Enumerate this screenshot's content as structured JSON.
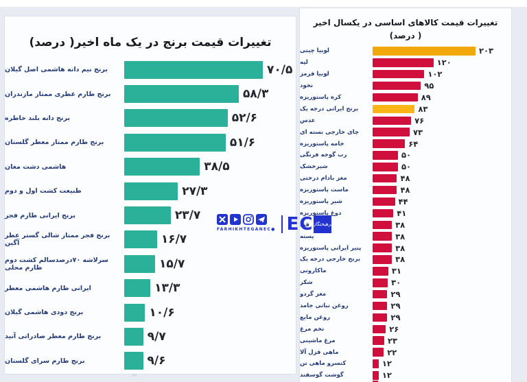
{
  "page": {
    "watermark_text": "farhikhtegan"
  },
  "brand": {
    "social_handle": "FARHIKHTEGANEC●",
    "eco_prefix": "EC",
    "eco_square_label": "فرهیختگان",
    "accent_blue": "#2233cf"
  },
  "chart_data": [
    {
      "type": "bar",
      "orientation": "horizontal",
      "title": "تغییرات قیمت برنج در یک ماه اخیر( درصد)",
      "xlabel": "",
      "ylabel": "",
      "xlim": [
        0,
        75
      ],
      "grid": false,
      "legend": false,
      "bar_color": "#2bb19a",
      "categories": [
        "برنج نیم دانه هاشمی اصل گیلان",
        "برنج طارم عطری ممتاز مازندران",
        "برنج دانه بلند خاطره",
        "برنج طارم ممتاز معطر گلستان",
        "هاشمی دشت مغان",
        "طبیعت کشت اول و دوم",
        "برنج ایرانی طارم فجر",
        "برنج فجر ممتاز شالی گستر عطر آگین",
        "سرلاشه ۷۰درصدسالم کشت دوم طارم محلی",
        "ایرانی طارم هاشمی معطر",
        "برنج دودی هاشمی گیلان",
        "برنج طارم معطر صادراتی آنید",
        "برنج طارم سرای گلستان"
      ],
      "values": [
        70.5,
        58.3,
        52.6,
        51.6,
        38.5,
        27.3,
        23.7,
        16.7,
        15.7,
        13.3,
        10.6,
        9.7,
        9.6
      ],
      "value_display": [
        "۷۰/۵",
        "۵۸/۳",
        "۵۲/۶",
        "۵۱/۶",
        "۳۸/۵",
        "۲۷/۳",
        "۲۳/۷",
        "۱۶/۷",
        "۱۵/۷",
        "۱۳/۳",
        "۱۰/۶",
        "۹/۷",
        "۹/۶"
      ]
    },
    {
      "type": "bar",
      "orientation": "horizontal",
      "title": "تغییرات قیمت کالاهای اساسی در یکسال اخیر",
      "subtitle": "( درصد)",
      "xlabel": "",
      "ylabel": "",
      "xlim": [
        0,
        210
      ],
      "grid": false,
      "legend": false,
      "bar_color": "#d00f3c",
      "highlights": [
        {
          "index": 0,
          "color": "#f2a70a"
        },
        {
          "index": 5,
          "color": "#fdb515"
        }
      ],
      "categories": [
        "لوبیا چیتی",
        "لپه",
        "لوبیا قرمز",
        "نخود",
        "کره پاستوریزه",
        "برنج ایرانی درجه یک",
        "عدس",
        "چای خارجی بسته ای",
        "خامه پاستوریزه",
        "رب گوجه فرنگی",
        "شیرخشک",
        "مغز بادام درختی",
        "ماست پاستوریزه",
        "شیر پاستوریزه",
        "دوغ پاستوریزه",
        "قند",
        "پسته",
        "پنیر ایرانی پاستوریزه",
        "برنج خارجی درجه یک",
        "ماکارونی",
        "شکر",
        "مغز گردو",
        "روغن نباتی جامد",
        "روغن مایع",
        "تخم مرغ",
        "مرغ ماشینی",
        "ماهی قزل آلا",
        "کنسرو ماهی تن",
        "گوشت گوسفند"
      ],
      "values": [
        203,
        120,
        102,
        95,
        89,
        83,
        76,
        73,
        64,
        50,
        50,
        48,
        48,
        44,
        41,
        38,
        38,
        38,
        38,
        31,
        30,
        29,
        29,
        29,
        26,
        23,
        22,
        12,
        12
      ],
      "value_display": [
        "۲۰۳",
        "۱۲۰",
        "۱۰۲",
        "۹۵",
        "۸۹",
        "۸۳",
        "۷۶",
        "۷۳",
        "۶۴",
        "۵۰",
        "۵۰",
        "۴۸",
        "۴۸",
        "۴۴",
        "۴۱",
        "۳۸",
        "۳۸",
        "۳۸",
        "۳۸",
        "۳۱",
        "۳۰",
        "۲۹",
        "۲۹",
        "۲۹",
        "۲۶",
        "۲۳",
        "۲۲",
        "۱۲",
        "۱۲"
      ]
    }
  ]
}
